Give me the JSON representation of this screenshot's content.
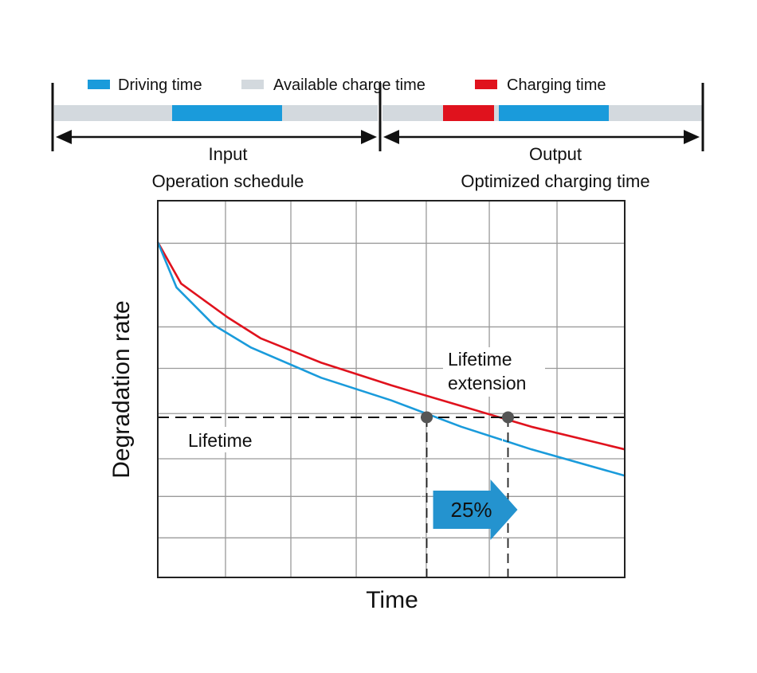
{
  "colors": {
    "driving": "#1a9bdb",
    "available": "#d3d9de",
    "charging": "#e0121d",
    "grid": "#9a9a9a",
    "axis": "#222222",
    "dashed": "#111111",
    "marker": "#555555",
    "arrow": "#2493cf"
  },
  "legend": {
    "driving_label": "Driving time",
    "available_label": "Available charge time",
    "charging_label": "Charging time"
  },
  "schedule": {
    "input_title": "Input",
    "input_subtitle": "Operation schedule",
    "output_title": "Output",
    "output_subtitle": "Optimized charging time"
  },
  "annotations": {
    "lifetime_label": "Lifetime",
    "extension_line1": "Lifetime",
    "extension_line2": "extension",
    "extension_pct": "25%"
  },
  "chart_data": {
    "type": "line",
    "xlabel": "Time",
    "ylabel": "Degradation rate",
    "xlim": [
      0,
      100
    ],
    "ylim": [
      0,
      100
    ],
    "grid": true,
    "lifetime_threshold": 42.5,
    "crossings": [
      57.6,
      75.0
    ],
    "series": [
      {
        "color": "#e0121d",
        "x": [
          0,
          5,
          15,
          22,
          35,
          50,
          65,
          80,
          100
        ],
        "y": [
          89,
          78,
          69,
          63.5,
          57,
          51,
          45.5,
          40,
          34
        ]
      },
      {
        "color": "#1a9bdb",
        "x": [
          0,
          4,
          12,
          20,
          35,
          50,
          65,
          80,
          100
        ],
        "y": [
          89,
          77,
          67,
          61,
          53,
          47,
          40,
          34,
          27
        ]
      }
    ]
  }
}
